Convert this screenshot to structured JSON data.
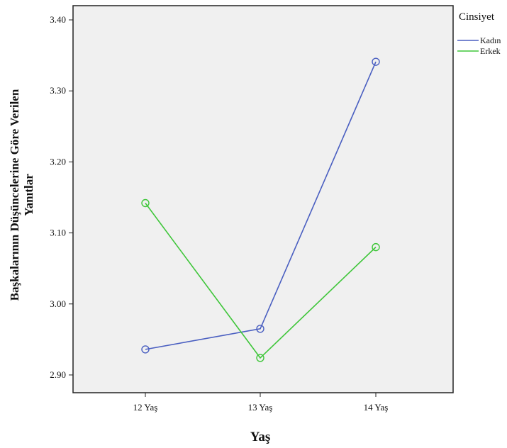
{
  "chart_data": {
    "type": "line",
    "xlabel": "Yaş",
    "ylabel_line1": "Başkalarının Düşüncelerine Göre Verilen",
    "ylabel_line2": "Yanıtlar",
    "categories": [
      "12 Yaş",
      "13 Yaş",
      "14 Yaş"
    ],
    "ylim": [
      2.875,
      3.42
    ],
    "yticks": [
      "2.90",
      "3.00",
      "3.10",
      "3.20",
      "3.30",
      "3.40"
    ],
    "ytick_values": [
      2.9,
      3.0,
      3.1,
      3.2,
      3.3,
      3.4
    ],
    "legend_title": "Cinsiyet",
    "legend_position": "top-right",
    "grid": false,
    "plot_background": "#f0f0f0",
    "series": [
      {
        "name": "Kadın",
        "color": "#4a5fc1",
        "values": [
          2.936,
          2.965,
          3.341
        ]
      },
      {
        "name": "Erkek",
        "color": "#3fc63a",
        "values": [
          3.142,
          2.924,
          3.08
        ]
      }
    ]
  }
}
